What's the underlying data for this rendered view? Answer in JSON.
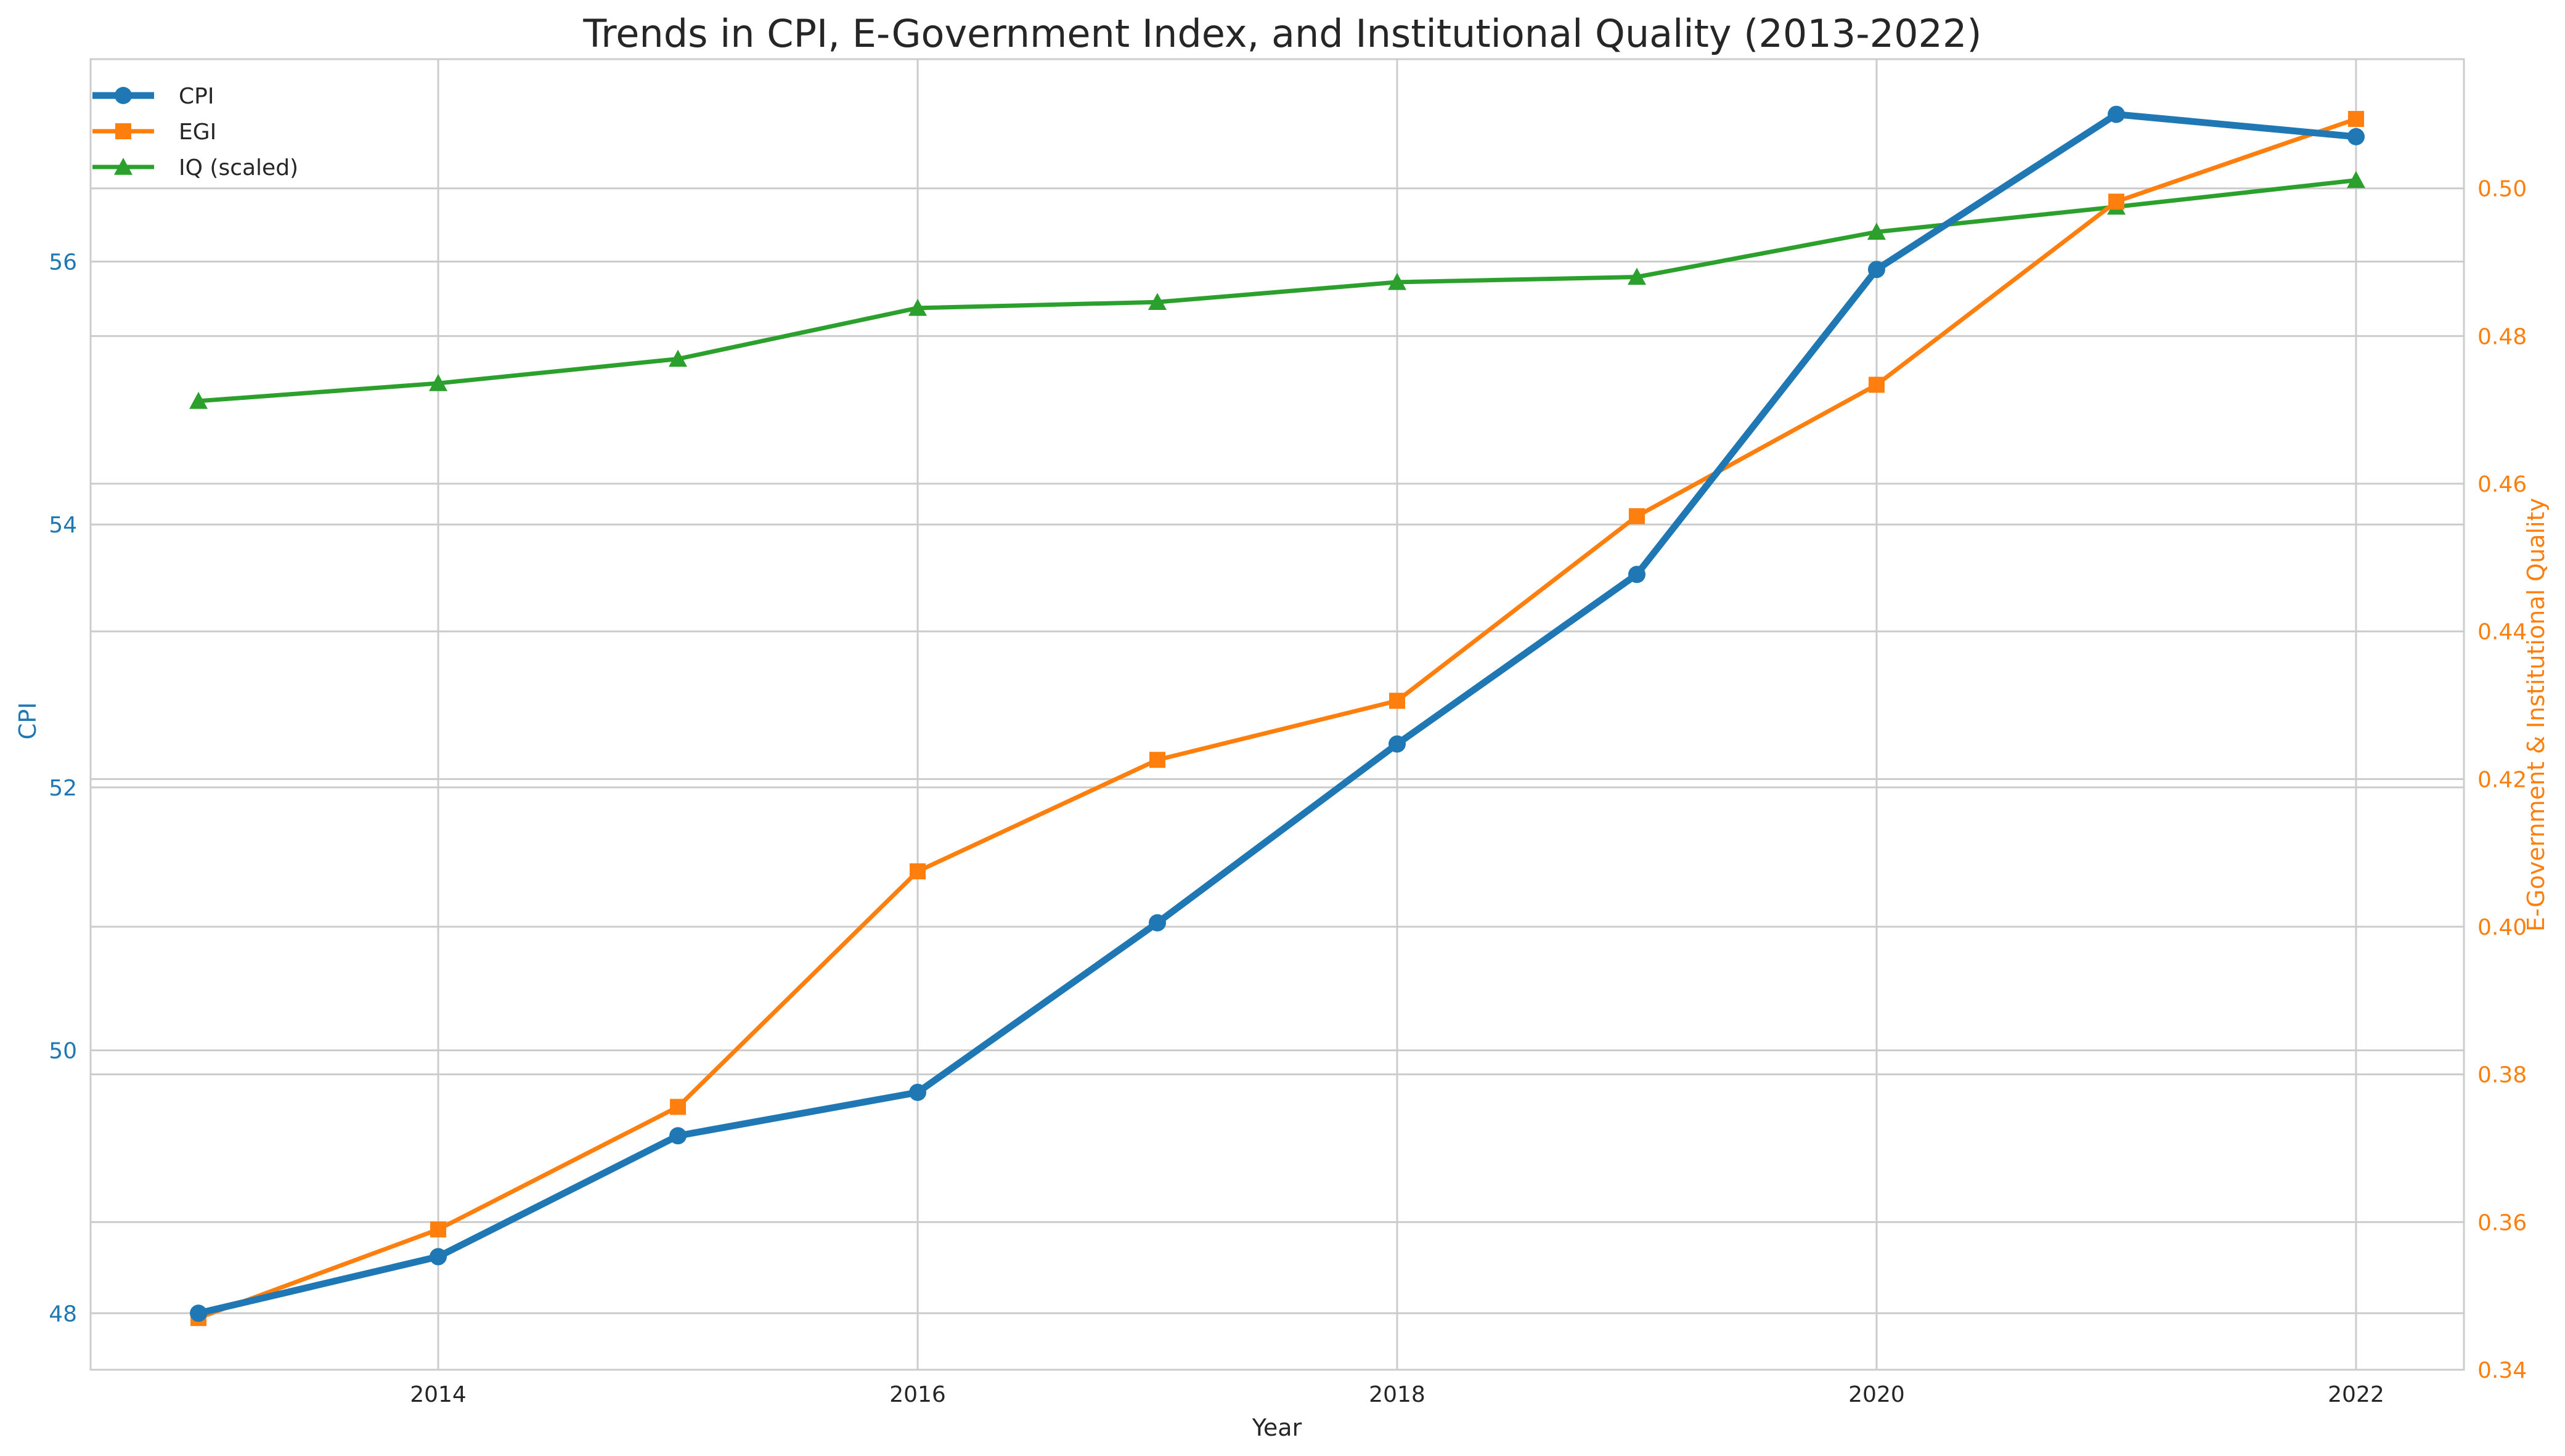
{
  "chart_data": {
    "type": "line",
    "title": "Trends in CPI, E-Government Index, and Institutional Quality (2013-2022)",
    "xlabel": "Year",
    "ylabel_left": "CPI",
    "ylabel_right": "E-Government & Institutional Quality",
    "x": [
      2013,
      2014,
      2015,
      2016,
      2017,
      2018,
      2019,
      2020,
      2021,
      2022
    ],
    "xlim": [
      2012.55,
      2022.45
    ],
    "xticks": [
      2014,
      2016,
      2018,
      2020,
      2022
    ],
    "ylim_left": [
      47.57,
      57.54
    ],
    "yticks_left": [
      48,
      50,
      52,
      54,
      56
    ],
    "ylim_right": [
      0.34,
      0.5175
    ],
    "yticks_right": [
      0.34,
      0.36,
      0.38,
      0.4,
      0.42,
      0.44,
      0.46,
      0.48,
      0.5
    ],
    "ytick_labels_right": [
      "0.34",
      "0.36",
      "0.38",
      "0.40",
      "0.42",
      "0.44",
      "0.46",
      "0.48",
      "0.50"
    ],
    "grid": true,
    "legend_position": "top-left",
    "series": [
      {
        "name": "CPI",
        "axis": "left",
        "color": "#1f77b4",
        "marker": "circle",
        "values": [
          48.0,
          48.43,
          49.35,
          49.68,
          50.97,
          52.33,
          53.62,
          55.94,
          57.12,
          56.95
        ]
      },
      {
        "name": "EGI",
        "axis": "right",
        "color": "#ff7f0e",
        "marker": "square",
        "values": [
          0.347,
          0.359,
          0.3756,
          0.4075,
          0.4226,
          0.4306,
          0.4556,
          0.4734,
          0.4982,
          0.5094
        ]
      },
      {
        "name": "IQ (scaled)",
        "axis": "right",
        "color": "#2ca02c",
        "marker": "triangle",
        "values": [
          0.4712,
          0.4736,
          0.4769,
          0.4838,
          0.4846,
          0.4873,
          0.488,
          0.4941,
          0.4975,
          0.5011
        ]
      }
    ]
  }
}
